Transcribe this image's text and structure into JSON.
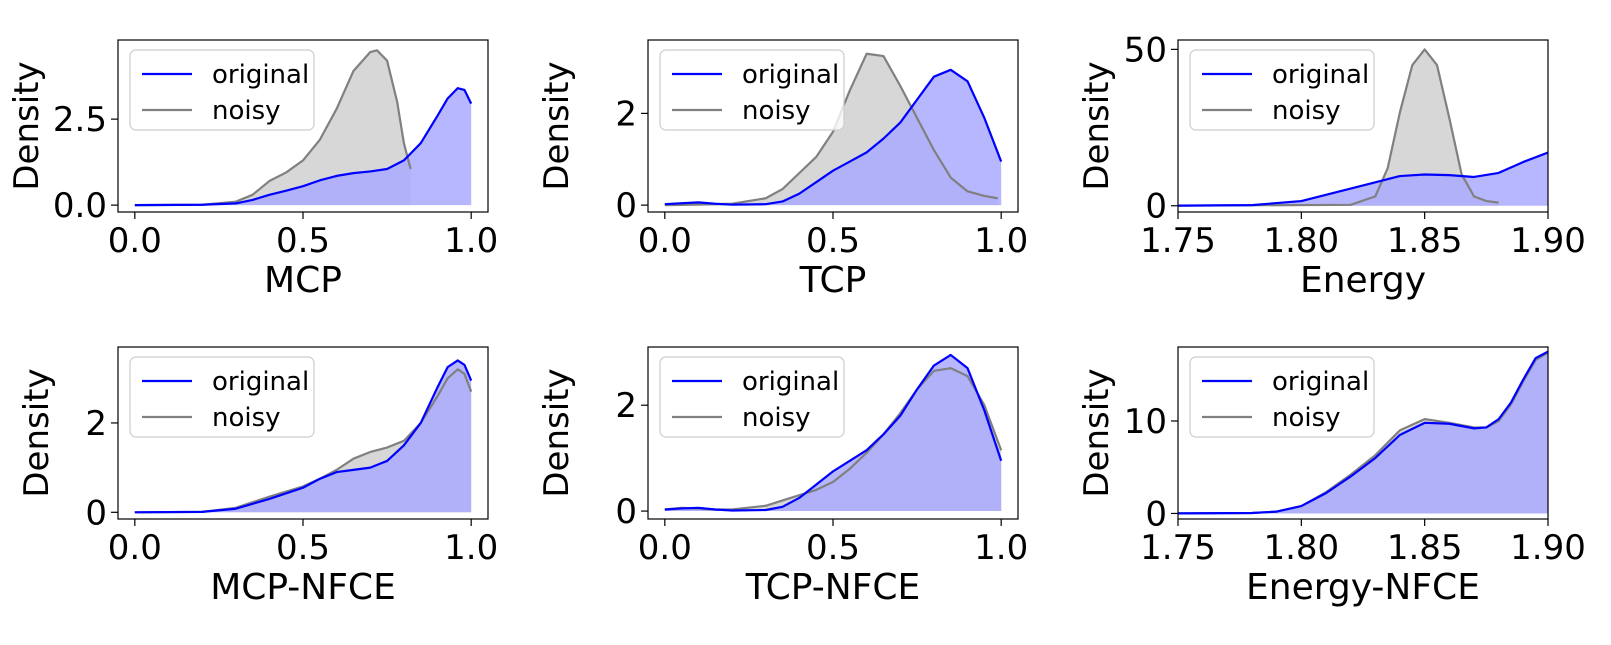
{
  "colors": {
    "original": "#0000ff",
    "noisy": "#808080",
    "original_fill": "#aaaaff",
    "noisy_fill": "#d3d3d3"
  },
  "legend": {
    "original": "original",
    "noisy": "noisy"
  },
  "chart_data": [
    {
      "type": "area",
      "title": "",
      "xlabel": "MCP",
      "ylabel": "Density",
      "xlim": [
        -0.05,
        1.05
      ],
      "ylim": [
        -0.2,
        4.8
      ],
      "xticks": [
        0.0,
        0.5,
        1.0
      ],
      "xtick_labels": [
        "0.0",
        "0.5",
        "1.0"
      ],
      "yticks": [
        0,
        2.5
      ],
      "ytick_labels": [
        "0.0",
        "2.5"
      ],
      "series": [
        {
          "name": "original",
          "x": [
            0,
            0.2,
            0.3,
            0.35,
            0.4,
            0.45,
            0.5,
            0.55,
            0.6,
            0.65,
            0.7,
            0.75,
            0.8,
            0.85,
            0.9,
            0.93,
            0.96,
            0.98,
            1.0
          ],
          "y": [
            0,
            0.01,
            0.05,
            0.15,
            0.3,
            0.42,
            0.55,
            0.72,
            0.85,
            0.93,
            0.98,
            1.05,
            1.3,
            1.8,
            2.6,
            3.1,
            3.4,
            3.35,
            2.95
          ]
        },
        {
          "name": "noisy",
          "x": [
            0,
            0.2,
            0.3,
            0.35,
            0.4,
            0.45,
            0.5,
            0.55,
            0.6,
            0.65,
            0.7,
            0.72,
            0.75,
            0.78,
            0.8,
            0.82
          ],
          "y": [
            0,
            0.01,
            0.1,
            0.3,
            0.7,
            0.95,
            1.3,
            1.9,
            2.8,
            3.9,
            4.45,
            4.5,
            4.2,
            3.0,
            1.8,
            1.05
          ]
        }
      ]
    },
    {
      "type": "area",
      "title": "",
      "xlabel": "TCP",
      "ylabel": "Density",
      "xlim": [
        -0.05,
        1.05
      ],
      "ylim": [
        -0.15,
        3.6
      ],
      "xticks": [
        0.0,
        0.5,
        1.0
      ],
      "xtick_labels": [
        "0.0",
        "0.5",
        "1.0"
      ],
      "yticks": [
        0,
        2
      ],
      "ytick_labels": [
        "0",
        "2"
      ],
      "series": [
        {
          "name": "original",
          "x": [
            0,
            0.05,
            0.1,
            0.15,
            0.2,
            0.3,
            0.35,
            0.4,
            0.45,
            0.5,
            0.55,
            0.6,
            0.65,
            0.7,
            0.75,
            0.8,
            0.85,
            0.9,
            0.95,
            1.0
          ],
          "y": [
            0.02,
            0.04,
            0.06,
            0.03,
            0.01,
            0.02,
            0.08,
            0.25,
            0.5,
            0.75,
            0.95,
            1.15,
            1.45,
            1.8,
            2.3,
            2.8,
            2.95,
            2.7,
            1.9,
            0.95
          ]
        },
        {
          "name": "noisy",
          "x": [
            0,
            0.1,
            0.2,
            0.3,
            0.35,
            0.4,
            0.45,
            0.5,
            0.55,
            0.6,
            0.65,
            0.7,
            0.75,
            0.8,
            0.85,
            0.9,
            0.95,
            0.99
          ],
          "y": [
            0,
            0.01,
            0.03,
            0.15,
            0.35,
            0.7,
            1.05,
            1.6,
            2.5,
            3.3,
            3.25,
            2.6,
            1.9,
            1.2,
            0.6,
            0.3,
            0.2,
            0.15
          ]
        }
      ]
    },
    {
      "type": "area",
      "title": "",
      "xlabel": "Energy",
      "ylabel": "Density",
      "xlim": [
        1.75,
        1.9
      ],
      "ylim": [
        -2,
        53
      ],
      "xticks": [
        1.75,
        1.8,
        1.85,
        1.9
      ],
      "xtick_labels": [
        "1.75",
        "1.80",
        "1.85",
        "1.90"
      ],
      "yticks": [
        0,
        50
      ],
      "ytick_labels": [
        "0",
        "50"
      ],
      "series": [
        {
          "name": "original",
          "x": [
            1.745,
            1.78,
            1.8,
            1.81,
            1.82,
            1.83,
            1.84,
            1.85,
            1.86,
            1.87,
            1.88,
            1.89,
            1.9
          ],
          "y": [
            0,
            0.2,
            1.5,
            3.5,
            5.5,
            7.5,
            9.5,
            10,
            9.8,
            9.2,
            10.5,
            14,
            17
          ]
        },
        {
          "name": "noisy",
          "x": [
            1.745,
            1.82,
            1.83,
            1.835,
            1.84,
            1.845,
            1.85,
            1.855,
            1.86,
            1.865,
            1.87,
            1.875,
            1.88
          ],
          "y": [
            0,
            0.3,
            3,
            12,
            30,
            45,
            50,
            45,
            28,
            10,
            3,
            1.5,
            1
          ]
        }
      ]
    },
    {
      "type": "area",
      "title": "",
      "xlabel": "MCP-NFCE",
      "ylabel": "Density",
      "xlim": [
        -0.05,
        1.05
      ],
      "ylim": [
        -0.15,
        3.7
      ],
      "xticks": [
        0.0,
        0.5,
        1.0
      ],
      "xtick_labels": [
        "0.0",
        "0.5",
        "1.0"
      ],
      "yticks": [
        0,
        2
      ],
      "ytick_labels": [
        "0",
        "2"
      ],
      "series": [
        {
          "name": "original",
          "x": [
            0,
            0.2,
            0.3,
            0.4,
            0.5,
            0.55,
            0.6,
            0.65,
            0.7,
            0.75,
            0.8,
            0.85,
            0.9,
            0.93,
            0.96,
            0.98,
            1.0
          ],
          "y": [
            0,
            0.01,
            0.08,
            0.3,
            0.55,
            0.75,
            0.9,
            0.95,
            1.0,
            1.15,
            1.5,
            2.0,
            2.8,
            3.25,
            3.4,
            3.3,
            2.95
          ]
        },
        {
          "name": "noisy",
          "x": [
            0,
            0.2,
            0.3,
            0.4,
            0.5,
            0.55,
            0.6,
            0.65,
            0.7,
            0.75,
            0.8,
            0.85,
            0.9,
            0.93,
            0.96,
            0.98,
            1.0
          ],
          "y": [
            0,
            0.01,
            0.1,
            0.35,
            0.58,
            0.75,
            0.95,
            1.2,
            1.35,
            1.45,
            1.6,
            2.0,
            2.6,
            3.0,
            3.2,
            3.1,
            2.7
          ]
        }
      ]
    },
    {
      "type": "area",
      "title": "",
      "xlabel": "TCP-NFCE",
      "ylabel": "Density",
      "xlim": [
        -0.05,
        1.05
      ],
      "ylim": [
        -0.15,
        3.1
      ],
      "xticks": [
        0.0,
        0.5,
        1.0
      ],
      "xtick_labels": [
        "0.0",
        "0.5",
        "1.0"
      ],
      "yticks": [
        0,
        2
      ],
      "ytick_labels": [
        "0",
        "2"
      ],
      "series": [
        {
          "name": "original",
          "x": [
            0,
            0.05,
            0.1,
            0.15,
            0.2,
            0.3,
            0.35,
            0.4,
            0.45,
            0.5,
            0.55,
            0.6,
            0.65,
            0.7,
            0.75,
            0.8,
            0.85,
            0.9,
            0.95,
            1.0
          ],
          "y": [
            0.03,
            0.05,
            0.06,
            0.03,
            0.01,
            0.02,
            0.08,
            0.25,
            0.5,
            0.75,
            0.95,
            1.15,
            1.45,
            1.8,
            2.3,
            2.75,
            2.95,
            2.7,
            1.9,
            0.95
          ]
        },
        {
          "name": "noisy",
          "x": [
            0,
            0.05,
            0.1,
            0.15,
            0.2,
            0.3,
            0.35,
            0.4,
            0.45,
            0.5,
            0.55,
            0.6,
            0.65,
            0.7,
            0.75,
            0.8,
            0.85,
            0.9,
            0.95,
            1.0
          ],
          "y": [
            0.03,
            0.06,
            0.05,
            0.03,
            0.03,
            0.1,
            0.2,
            0.3,
            0.4,
            0.55,
            0.8,
            1.1,
            1.45,
            1.85,
            2.3,
            2.65,
            2.7,
            2.55,
            2.0,
            1.15
          ]
        }
      ]
    },
    {
      "type": "area",
      "title": "",
      "xlabel": "Energy-NFCE",
      "ylabel": "Density",
      "xlim": [
        1.75,
        1.9
      ],
      "ylim": [
        -0.6,
        18
      ],
      "xticks": [
        1.75,
        1.8,
        1.85,
        1.9
      ],
      "xtick_labels": [
        "1.75",
        "1.80",
        "1.85",
        "1.90"
      ],
      "yticks": [
        0,
        10
      ],
      "ytick_labels": [
        "0",
        "10"
      ],
      "series": [
        {
          "name": "original",
          "x": [
            1.745,
            1.78,
            1.79,
            1.8,
            1.81,
            1.82,
            1.83,
            1.84,
            1.85,
            1.86,
            1.87,
            1.875,
            1.88,
            1.885,
            1.89,
            1.895,
            1.9
          ],
          "y": [
            0,
            0.05,
            0.2,
            0.8,
            2.2,
            4.0,
            6.0,
            8.5,
            9.8,
            9.7,
            9.2,
            9.3,
            10.2,
            12.0,
            14.5,
            16.8,
            17.5
          ]
        },
        {
          "name": "noisy",
          "x": [
            1.745,
            1.78,
            1.79,
            1.8,
            1.81,
            1.82,
            1.83,
            1.84,
            1.85,
            1.86,
            1.87,
            1.875,
            1.88,
            1.885,
            1.89,
            1.895,
            1.9
          ],
          "y": [
            0,
            0.05,
            0.2,
            0.8,
            2.3,
            4.2,
            6.3,
            9.0,
            10.2,
            9.8,
            9.3,
            9.3,
            10.0,
            11.8,
            14.3,
            16.6,
            17.4
          ]
        }
      ]
    }
  ]
}
